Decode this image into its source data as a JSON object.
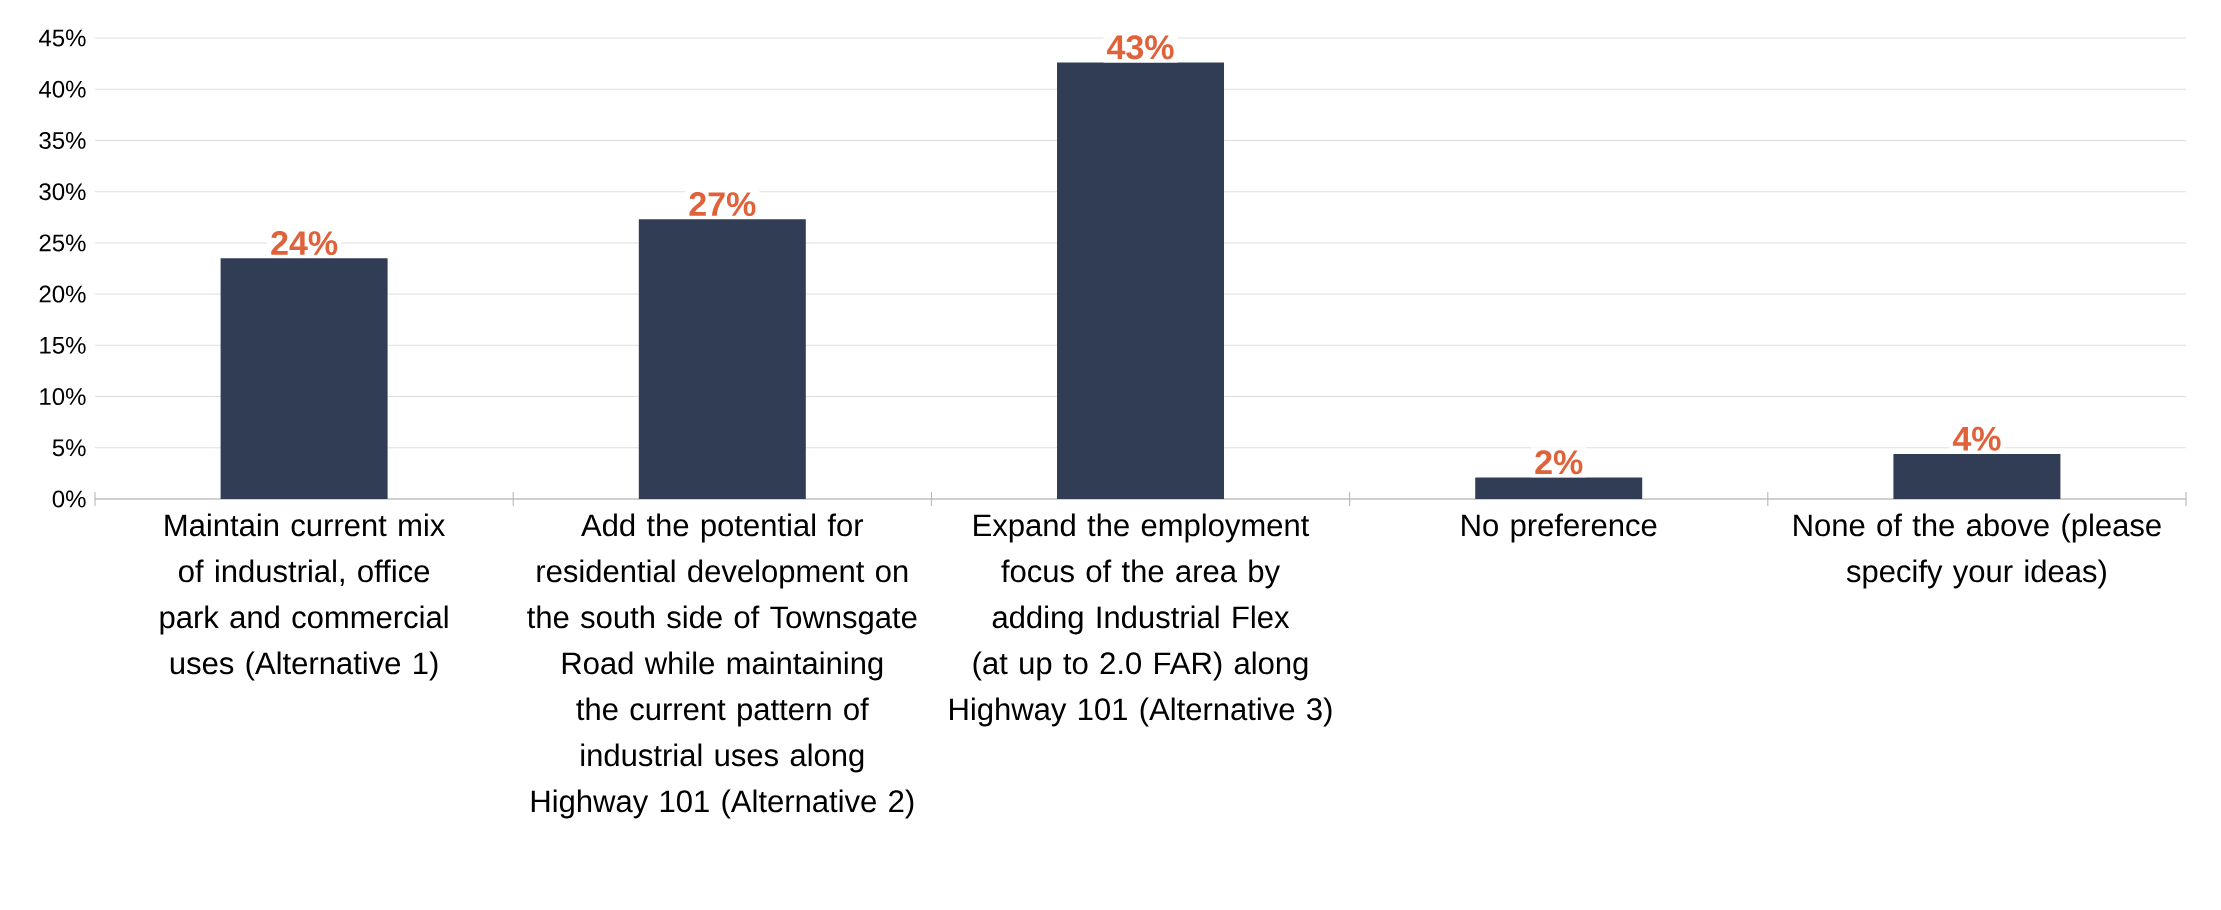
{
  "chart_data": {
    "type": "bar",
    "categories": [
      "Maintain current mix of industrial, office park and commercial uses (Alternative 1)",
      "Add the potential for residential development on the south side of Townsgate Road while maintaining the current pattern of industrial uses along Highway 101 (Alternative 2)",
      "Expand the employment focus of the area by adding Industrial Flex (at up to 2.0 FAR) along Highway 101 (Alternative 3)",
      "No preference",
      "None of the above (please specify your ideas)"
    ],
    "values": [
      23.5,
      27.3,
      42.6,
      2.1,
      4.4
    ],
    "value_labels": [
      "24%",
      "27%",
      "43%",
      "2%",
      "4%"
    ],
    "color": "#303d55",
    "ylim": [
      0,
      45
    ],
    "yticks": [
      {
        "value": 0,
        "label": "0%"
      },
      {
        "value": 5,
        "label": "5%"
      },
      {
        "value": 10,
        "label": "10%"
      },
      {
        "value": 15,
        "label": "15%"
      },
      {
        "value": 20,
        "label": "20%"
      },
      {
        "value": 25,
        "label": "25%"
      },
      {
        "value": 30,
        "label": "30%"
      },
      {
        "value": 35,
        "label": "35%"
      },
      {
        "value": 40,
        "label": "40%"
      },
      {
        "value": 45,
        "label": "45%"
      }
    ],
    "grid": "y"
  }
}
